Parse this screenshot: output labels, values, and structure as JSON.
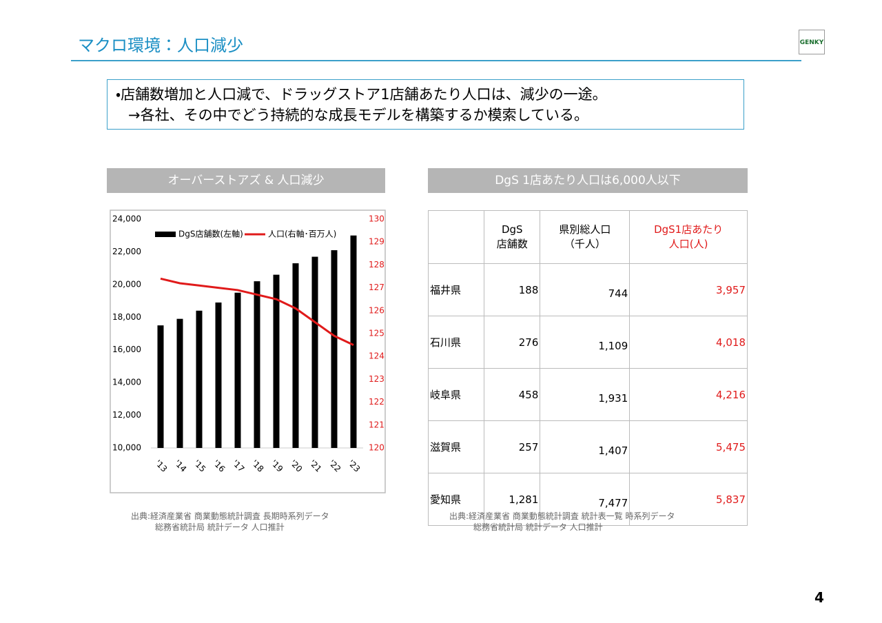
{
  "header": {
    "title": "マクロ環境：人口減少",
    "logo": "GENKY"
  },
  "bullet": {
    "lines": [
      "・店舗数増加と人口減で、ドラッグストア1店舗あたり人口は、減少の一途。",
      "→各社、その中でどう持続的な成長モデルを構築するか模索している。"
    ]
  },
  "chart_data": {
    "type": "bar_line",
    "title": "オーバーストアズ & 人口減少",
    "categories": [
      "'13",
      "'14",
      "'15",
      "'16",
      "'17",
      "'18",
      "'19",
      "'20",
      "'21",
      "'22",
      "'23"
    ],
    "series": [
      {
        "name": "DgS店舗数(左軸)",
        "color": "#000000",
        "type": "bar",
        "axis": "y",
        "values": [
          17500,
          17900,
          18400,
          18900,
          19500,
          20200,
          20600,
          21300,
          21700,
          22100,
          23000
        ]
      },
      {
        "name": "人口(右軸･百万人)",
        "color": "#e01a1a",
        "type": "line",
        "axis": "y2",
        "values": [
          127.4,
          127.2,
          127.1,
          127.0,
          126.9,
          126.7,
          126.5,
          126.1,
          125.5,
          124.9,
          124.5
        ]
      }
    ],
    "ylim": [
      10000,
      24000
    ],
    "yticks": [
      {
        "value": 10000,
        "label": "10,000"
      },
      {
        "value": 12000,
        "label": "12,000"
      },
      {
        "value": 14000,
        "label": "14,000"
      },
      {
        "value": 16000,
        "label": "16,000"
      },
      {
        "value": 18000,
        "label": "18,000"
      },
      {
        "value": 20000,
        "label": "20,000"
      },
      {
        "value": 22000,
        "label": "22,000"
      },
      {
        "value": 24000,
        "label": "24,000"
      }
    ],
    "y2lim": [
      120,
      130
    ],
    "y2ticks": [
      120,
      121,
      122,
      123,
      124,
      125,
      126,
      127,
      128,
      129,
      130
    ],
    "y2color": "#e01a1a",
    "grid": false
  },
  "table": {
    "title": "DgS 1店あたり人口は6,000人以下",
    "headers": [
      [
        "DgS",
        "店舗数"
      ],
      [
        "県別総人口",
        "（千人）"
      ],
      [
        "DgS1店あたり",
        "人口(人)"
      ]
    ],
    "rows": [
      [
        "福井県",
        "188",
        "744",
        "3,957"
      ],
      [
        "石川県",
        "276",
        "1,109",
        "4,018"
      ],
      [
        "岐阜県",
        "458",
        "1,931",
        "4,216"
      ],
      [
        "滋賀県",
        "257",
        "1,407",
        "5,475"
      ],
      [
        "愛知県",
        "1,281",
        "7,477",
        "5,837"
      ]
    ]
  },
  "sources": [
    [
      "出典:経済産業省 商業動態統計調査 長期時系列データ",
      "総務省統計局 統計データ 人口推計"
    ],
    [
      "出典:経済産業省 商業動態統計調査 統計表一覧 時系列データ",
      "総務省統計局 統計データ 人口推計"
    ]
  ],
  "page_number": "4"
}
